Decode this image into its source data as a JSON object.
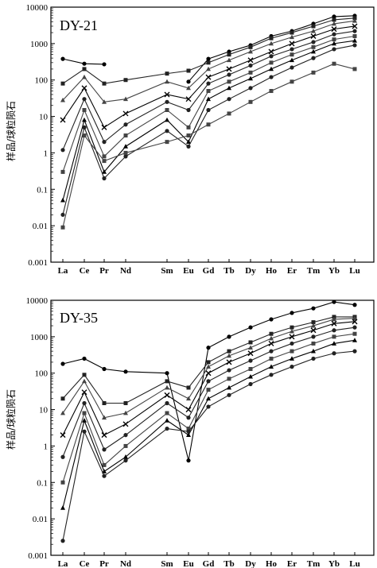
{
  "chart_data": [
    {
      "type": "line",
      "title": "DY-21",
      "ylabel": "样品/球粒陨石",
      "yscale": "log",
      "ylim": [
        0.001,
        10000
      ],
      "yticks": [
        "0.001",
        "0.01",
        "0.1",
        "1",
        "10",
        "100",
        "1000",
        "10000"
      ],
      "categories": [
        "La",
        "Ce",
        "Pr",
        "Nd",
        "Sm",
        "Eu",
        "Gd",
        "Tb",
        "Dy",
        "Ho",
        "Er",
        "Tm",
        "Yb",
        "Lu"
      ],
      "series": [
        {
          "values": [
            380,
            280,
            270,
            null,
            null,
            90,
            380,
            600,
            900,
            1600,
            2200,
            3500,
            5500,
            5800
          ]
        },
        {
          "values": [
            80,
            200,
            80,
            100,
            150,
            180,
            300,
            500,
            800,
            1400,
            2000,
            3000,
            4500,
            5000
          ]
        },
        {
          "values": [
            28,
            120,
            25,
            30,
            90,
            60,
            200,
            350,
            600,
            1000,
            1500,
            2200,
            3500,
            4200
          ]
        },
        {
          "values": [
            8,
            60,
            5,
            12,
            40,
            30,
            120,
            200,
            350,
            600,
            1000,
            1600,
            2500,
            3000
          ]
        },
        {
          "values": [
            1.2,
            30,
            2,
            6,
            25,
            15,
            80,
            140,
            250,
            450,
            700,
            1100,
            1800,
            2200
          ]
        },
        {
          "values": [
            0.3,
            15,
            0.8,
            3,
            15,
            5,
            50,
            90,
            160,
            300,
            500,
            800,
            1300,
            1600
          ]
        },
        {
          "values": [
            0.05,
            8,
            0.3,
            1.5,
            8,
            2,
            30,
            60,
            110,
            200,
            350,
            600,
            1000,
            1200
          ]
        },
        {
          "values": [
            0.02,
            5,
            0.2,
            0.8,
            4,
            1.5,
            15,
            30,
            60,
            120,
            220,
            400,
            700,
            900
          ]
        },
        {
          "values": [
            0.009,
            3,
            0.6,
            1,
            2,
            3,
            6,
            12,
            25,
            50,
            90,
            160,
            280,
            200
          ]
        }
      ]
    },
    {
      "type": "line",
      "title": "DY-35",
      "ylabel": "样品/球粒陨石",
      "yscale": "log",
      "ylim": [
        0.001,
        10000
      ],
      "yticks": [
        "0.001",
        "0.01",
        "0.1",
        "1",
        "10",
        "100",
        "1000",
        "10000"
      ],
      "categories": [
        "La",
        "Ce",
        "Pr",
        "Nd",
        "Sm",
        "Eu",
        "Gd",
        "Tb",
        "Dy",
        "Ho",
        "Er",
        "Tm",
        "Yb",
        "Lu"
      ],
      "series": [
        {
          "values": [
            180,
            250,
            130,
            110,
            100,
            0.4,
            500,
            1000,
            1800,
            3000,
            4500,
            6000,
            9000,
            7500
          ]
        },
        {
          "values": [
            20,
            90,
            15,
            15,
            60,
            40,
            200,
            400,
            700,
            1200,
            1800,
            2500,
            3500,
            3500
          ]
        },
        {
          "values": [
            8,
            60,
            6,
            8,
            40,
            20,
            150,
            300,
            500,
            900,
            1400,
            2000,
            3000,
            3200
          ]
        },
        {
          "values": [
            2,
            30,
            2,
            4,
            25,
            10,
            100,
            200,
            350,
            650,
            1000,
            1500,
            2300,
            2600
          ]
        },
        {
          "values": [
            0.5,
            15,
            0.8,
            2,
            15,
            6,
            60,
            120,
            220,
            400,
            650,
            1000,
            1500,
            1800
          ]
        },
        {
          "values": [
            0.1,
            8,
            0.3,
            1,
            8,
            3,
            35,
            70,
            130,
            250,
            400,
            650,
            1000,
            1200
          ]
        },
        {
          "values": [
            0.02,
            5,
            0.2,
            0.5,
            5,
            2,
            20,
            40,
            80,
            150,
            250,
            400,
            650,
            800
          ]
        },
        {
          "values": [
            0.0025,
            2.5,
            0.15,
            0.4,
            3,
            2.5,
            12,
            25,
            50,
            90,
            150,
            250,
            350,
            400
          ]
        }
      ]
    }
  ]
}
